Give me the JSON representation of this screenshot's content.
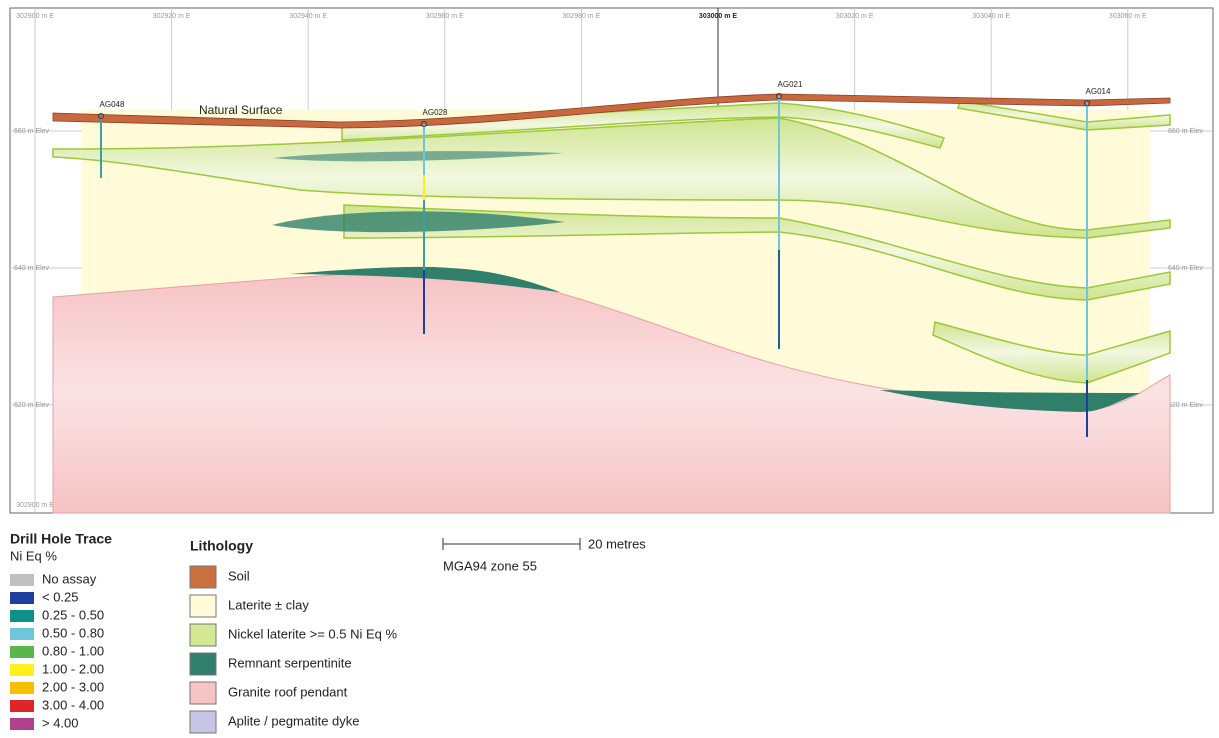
{
  "grid": {
    "eastings": [
      "302900 m E",
      "302920 m E",
      "302940 m E",
      "302960 m E",
      "302980 m E",
      "303000 m E",
      "303020 m E",
      "303040 m E",
      "303060 m E"
    ],
    "elevations": [
      "660 m Elev",
      "640 m Elev",
      "620 m Elev"
    ]
  },
  "section": {
    "surface_label": "Natural Surface",
    "drill_holes": [
      "AG048",
      "AG028",
      "AG021",
      "AG014"
    ]
  },
  "legend": {
    "drill_hole_title": "Drill Hole Trace",
    "drill_hole_subtitle": "Ni Eq %",
    "grades": [
      "No assay",
      "< 0.25",
      "0.25 - 0.50",
      "0.50 - 0.80",
      "0.80 - 1.00",
      "1.00 - 2.00",
      "2.00 - 3.00",
      "3.00 - 4.00",
      "> 4.00"
    ],
    "lithology_title": "Lithology",
    "lithology": [
      "Soil",
      "Laterite ± clay",
      "Nickel laterite >= 0.5 Ni Eq %",
      "Remnant serpentinite",
      "Granite roof pendant",
      "Aplite / pegmatite dyke"
    ]
  },
  "scale": {
    "bar_label": "20 metres",
    "projection": "MGA94 zone 55"
  }
}
